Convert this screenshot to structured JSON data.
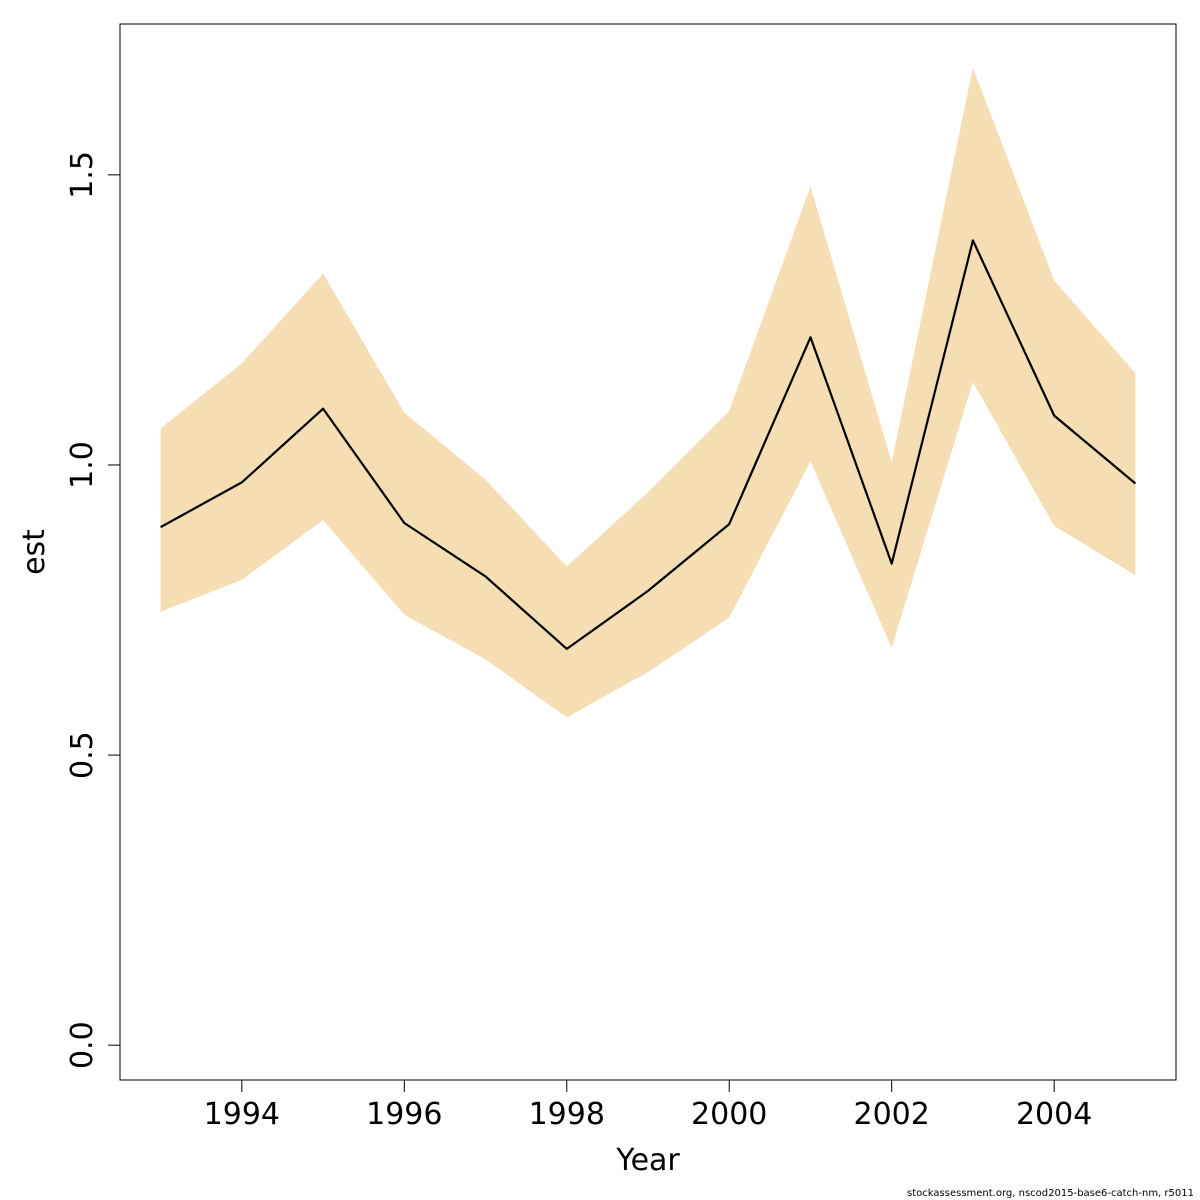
{
  "chart_data": {
    "type": "line",
    "title": "",
    "xlabel": "Year",
    "ylabel": "est",
    "xlim": [
      1992.5,
      2005.5
    ],
    "ylim": [
      -0.06,
      1.76
    ],
    "xticks": [
      1994,
      1996,
      1998,
      2000,
      2002,
      2004
    ],
    "yticks": [
      "0.0",
      "0.5",
      "1.0",
      "1.5"
    ],
    "band_color": "#F5DEB3",
    "line_color": "#000000",
    "grid": false,
    "x": [
      1993,
      1994,
      1995,
      1996,
      1997,
      1998,
      1999,
      2000,
      2001,
      2002,
      2003,
      2004,
      2005
    ],
    "series": [
      {
        "values": [
          0.893,
          0.97,
          1.097,
          0.9,
          0.808,
          0.683,
          0.783,
          0.898,
          1.22,
          0.83,
          1.387,
          1.085,
          0.968
        ],
        "lower": [
          0.747,
          0.802,
          0.905,
          0.742,
          0.665,
          0.565,
          0.643,
          0.737,
          1.006,
          0.685,
          1.143,
          0.895,
          0.81
        ],
        "upper": [
          1.063,
          1.175,
          1.33,
          1.09,
          0.975,
          0.825,
          0.953,
          1.093,
          1.48,
          1.005,
          1.685,
          1.318,
          1.158
        ]
      }
    ]
  },
  "footnote": "stockassessment.org, nscod2015-base6-catch-nm, r5011"
}
